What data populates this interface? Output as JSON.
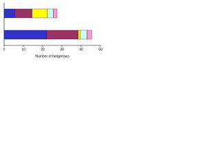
{
  "chart_data": {
    "type": "stacked-bar-horizontal",
    "x_label": "Number of hedgerows",
    "categories": [
      null,
      null
    ],
    "series": [
      {
        "color": "#3333cc",
        "values": [
          5.5,
          22
        ]
      },
      {
        "color": "#993366",
        "values": [
          9,
          16.5
        ]
      },
      {
        "color": "#ffff00",
        "values": [
          8,
          1
        ]
      },
      {
        "color": "#ccffff",
        "values": [
          3,
          3.5
        ]
      },
      {
        "color": "#ff99cc",
        "values": [
          2,
          2.5
        ]
      }
    ],
    "xlim": [
      0,
      50
    ],
    "xticks": [
      0,
      10,
      20,
      30,
      40,
      50
    ]
  }
}
